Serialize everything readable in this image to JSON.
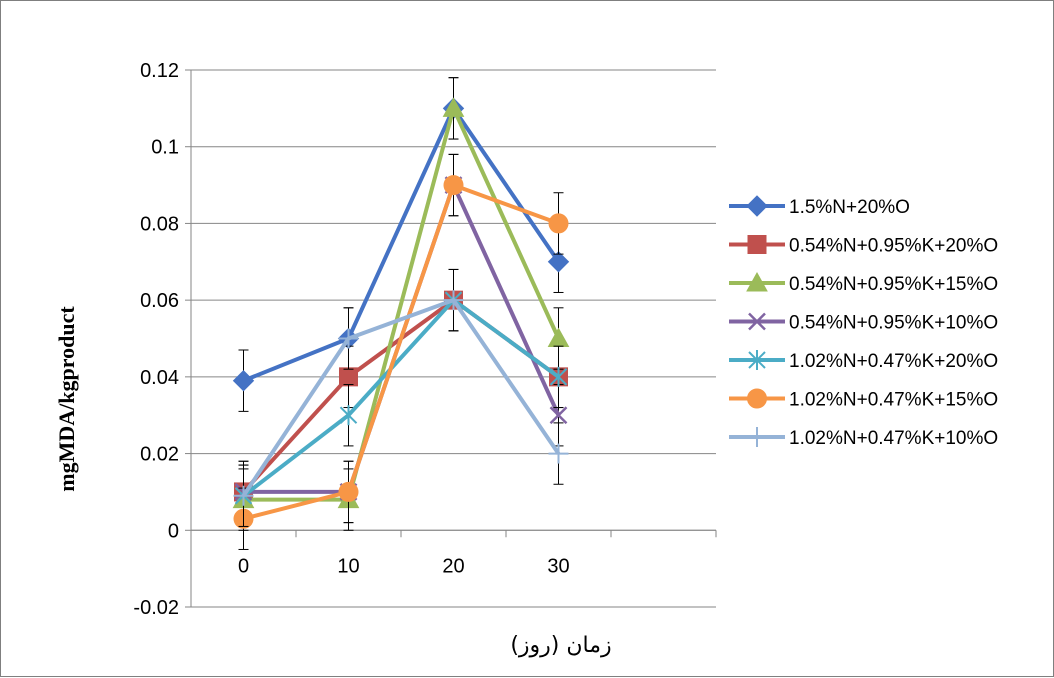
{
  "chart_data": {
    "type": "line",
    "title": "",
    "xlabel": "زمان (روز)",
    "ylabel": "mgMDA/kgproduct",
    "x": [
      0,
      10,
      20,
      30
    ],
    "x_ticks": [
      "0",
      "10",
      "20",
      "30"
    ],
    "x_category_count": 5,
    "ylim": [
      -0.02,
      0.12
    ],
    "y_ticks": [
      "-0.02",
      "0",
      "0.02",
      "0.04",
      "0.06",
      "0.08",
      "0.1",
      "0.12"
    ],
    "y_tick_values": [
      -0.02,
      0,
      0.02,
      0.04,
      0.06,
      0.08,
      0.1,
      0.12
    ],
    "grid": "horizontal",
    "legend_position": "right",
    "series": [
      {
        "name": "1.5%N+20%O",
        "color": "#4472C4",
        "marker": "diamond",
        "values": [
          0.039,
          0.05,
          0.11,
          0.07
        ],
        "errors": [
          0.008,
          0.008,
          0.008,
          0.008
        ]
      },
      {
        "name": "0.54%N+0.95%K+20%O",
        "color": "#C0504D",
        "marker": "square",
        "values": [
          0.01,
          0.04,
          0.06,
          0.04
        ],
        "errors": [
          0.008,
          0.008,
          0.008,
          0.008
        ]
      },
      {
        "name": "0.54%N+0.95%K+15%O",
        "color": "#9BBB59",
        "marker": "triangle",
        "values": [
          0.008,
          0.008,
          0.11,
          0.05
        ],
        "errors": [
          0.008,
          0.008,
          0.008,
          0.008
        ]
      },
      {
        "name": "0.54%N+0.95%K+10%O",
        "color": "#8064A2",
        "marker": "x",
        "values": [
          0.01,
          0.01,
          0.09,
          0.03
        ],
        "errors": [
          0.008,
          0.008,
          0.008,
          0.008
        ]
      },
      {
        "name": "1.02%N+0.47%K+20%O",
        "color": "#4BACC6",
        "marker": "star",
        "values": [
          0.009,
          0.03,
          0.06,
          0.04
        ],
        "errors": [
          0.008,
          0.008,
          0.008,
          0.008
        ]
      },
      {
        "name": "1.02%N+0.47%K+15%O",
        "color": "#F79646",
        "marker": "circle",
        "values": [
          0.003,
          0.01,
          0.09,
          0.08
        ],
        "errors": [
          0.008,
          0.008,
          0.008,
          0.008
        ]
      },
      {
        "name": "1.02%N+0.47%K+10%O",
        "color": "#95B3D7",
        "marker": "plus",
        "values": [
          0.009,
          0.05,
          0.06,
          0.02
        ],
        "errors": [
          0.008,
          0.008,
          0.008,
          0.008
        ]
      }
    ]
  }
}
